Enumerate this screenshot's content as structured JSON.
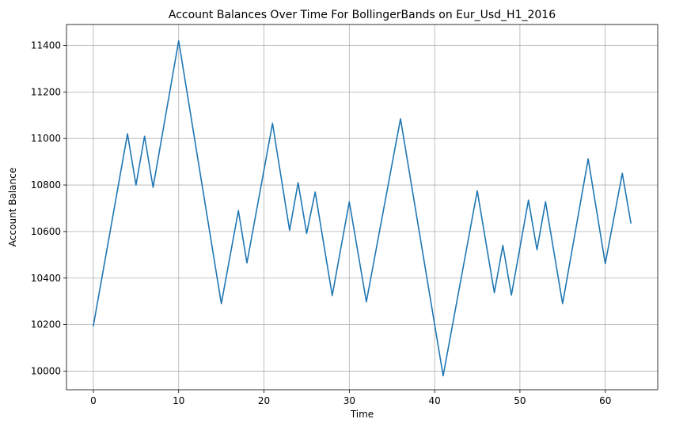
{
  "chart_data": {
    "type": "line",
    "title": "Account Balances Over Time For BollingerBands on Eur_Usd_H1_2016",
    "xlabel": "Time",
    "ylabel": "Account Balance",
    "xlim": [
      -3.15,
      66.15
    ],
    "ylim": [
      9920,
      11490
    ],
    "xticks": [
      0,
      10,
      20,
      30,
      40,
      50,
      60
    ],
    "yticks": [
      10000,
      10200,
      10400,
      10600,
      10800,
      11000,
      11200,
      11400
    ],
    "grid": true,
    "series": [
      {
        "color": "#1f77b4",
        "points": [
          [
            0,
            10195
          ],
          [
            4,
            11020
          ],
          [
            5,
            10800
          ],
          [
            6,
            11010
          ],
          [
            7,
            10790
          ],
          [
            10,
            11420
          ],
          [
            15,
            10290
          ],
          [
            17,
            10690
          ],
          [
            18,
            10465
          ],
          [
            21,
            11065
          ],
          [
            23,
            10605
          ],
          [
            24,
            10810
          ],
          [
            25,
            10592
          ],
          [
            26,
            10770
          ],
          [
            28,
            10325
          ],
          [
            30,
            10728
          ],
          [
            32,
            10298
          ],
          [
            36,
            11085
          ],
          [
            41,
            9980
          ],
          [
            45,
            10775
          ],
          [
            47,
            10337
          ],
          [
            48,
            10540
          ],
          [
            49,
            10327
          ],
          [
            51,
            10735
          ],
          [
            52,
            10522
          ],
          [
            53,
            10728
          ],
          [
            55,
            10290
          ],
          [
            58,
            10912
          ],
          [
            60,
            10462
          ],
          [
            62,
            10850
          ],
          [
            63,
            10637
          ]
        ]
      }
    ]
  }
}
